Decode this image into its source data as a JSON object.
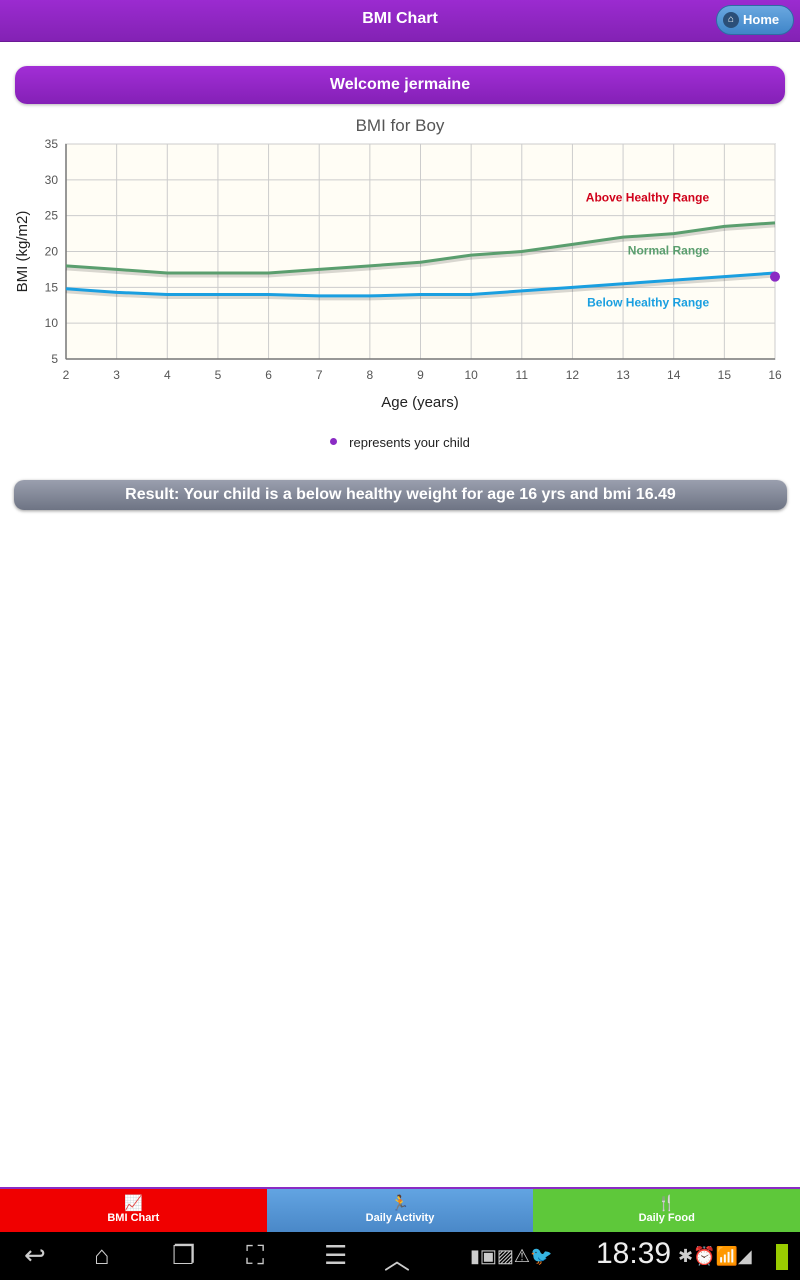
{
  "header": {
    "title": "BMI Chart",
    "home_label": "Home",
    "home_icon": "home-icon"
  },
  "welcome": "Welcome jermaine",
  "chart_data": {
    "type": "line",
    "title": "BMI for Boy",
    "xlabel": "Age (years)",
    "ylabel": "BMI (kg/m2)",
    "xlim": [
      2,
      16
    ],
    "ylim": [
      5,
      35
    ],
    "xticks": [
      2,
      3,
      4,
      5,
      6,
      7,
      8,
      9,
      10,
      11,
      12,
      13,
      14,
      15,
      16
    ],
    "yticks": [
      5,
      10,
      15,
      20,
      25,
      30,
      35
    ],
    "grid": true,
    "x": [
      2,
      3,
      4,
      5,
      6,
      7,
      8,
      9,
      10,
      11,
      12,
      13,
      14,
      15,
      16
    ],
    "series": [
      {
        "values": [
          18,
          17.5,
          17,
          17,
          17,
          17.5,
          18,
          18.5,
          19.5,
          20,
          21,
          22,
          22.5,
          23.5,
          24
        ],
        "color": "#5a9e6e"
      },
      {
        "values": [
          14.8,
          14.3,
          14,
          14,
          14,
          13.8,
          13.8,
          14,
          14,
          14.5,
          15,
          15.5,
          16,
          16.5,
          17
        ],
        "color": "#1a9fe0"
      }
    ],
    "annotations": [
      {
        "text": "Above Healthy Range",
        "x": 14.7,
        "y": 27,
        "color": "#d0021b"
      },
      {
        "text": "Normal Range",
        "x": 14.7,
        "y": 19.6,
        "color": "#5a9e6e"
      },
      {
        "text": "Below Healthy Range",
        "x": 14.7,
        "y": 12.3,
        "color": "#1a9fe0"
      }
    ],
    "point": {
      "x": 16,
      "y": 16.49,
      "color": "#8a2bc4"
    },
    "plot_bg": "#fffdf5"
  },
  "legend": "represents your child",
  "result": "Result: Your child is a below healthy weight for age 16 yrs and bmi 16.49",
  "tabs": [
    {
      "label": "BMI Chart",
      "icon": "chart-icon",
      "color": "#f00000"
    },
    {
      "label": "Daily Activity",
      "icon": "running-icon",
      "color": "#5a9ad8"
    },
    {
      "label": "Daily Food",
      "icon": "fork-knife-icon",
      "color": "#5ec83a"
    }
  ],
  "status": {
    "time": "18:39"
  }
}
